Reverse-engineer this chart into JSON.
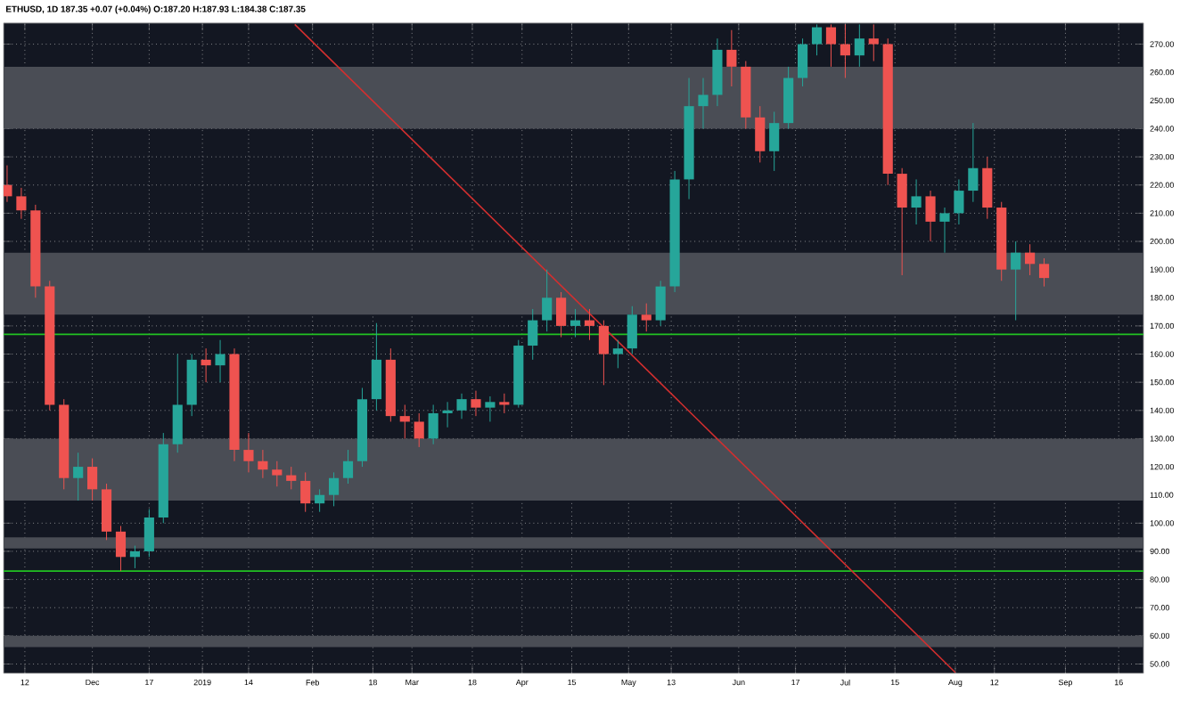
{
  "chart_data": {
    "type": "candlestick",
    "title": "ETHUSD, 1D 187.35 +0.07 (+0.04%) O:187.20 H:187.93 L:184.38 C:187.35",
    "x": [
      "2018-11-07",
      "2018-11-11",
      "2018-11-15",
      "2018-11-19",
      "2018-11-23",
      "2018-11-27",
      "2018-12-01",
      "2018-12-05",
      "2018-12-09",
      "2018-12-13",
      "2018-12-17",
      "2018-12-21",
      "2018-12-25",
      "2018-12-29",
      "2019-01-02",
      "2019-01-06",
      "2019-01-10",
      "2019-01-14",
      "2019-01-18",
      "2019-01-22",
      "2019-01-26",
      "2019-01-30",
      "2019-02-03",
      "2019-02-07",
      "2019-02-11",
      "2019-02-15",
      "2019-02-19",
      "2019-02-23",
      "2019-02-27",
      "2019-03-03",
      "2019-03-07",
      "2019-03-11",
      "2019-03-15",
      "2019-03-19",
      "2019-03-23",
      "2019-03-27",
      "2019-03-31",
      "2019-04-04",
      "2019-04-08",
      "2019-04-12",
      "2019-04-16",
      "2019-04-20",
      "2019-04-24",
      "2019-04-28",
      "2019-05-02",
      "2019-05-06",
      "2019-05-10",
      "2019-05-14",
      "2019-05-18",
      "2019-05-22",
      "2019-05-26",
      "2019-05-30",
      "2019-06-03",
      "2019-06-07",
      "2019-06-11",
      "2019-06-15",
      "2019-06-19",
      "2019-06-23",
      "2019-06-27",
      "2019-07-01",
      "2019-07-05",
      "2019-07-09",
      "2019-07-13",
      "2019-07-17",
      "2019-07-21",
      "2019-07-25",
      "2019-07-29",
      "2019-08-02",
      "2019-08-06",
      "2019-08-10",
      "2019-08-14",
      "2019-08-18",
      "2019-08-22",
      "2019-08-26"
    ],
    "ohlc": [
      [
        220,
        227,
        214,
        216
      ],
      [
        216,
        219,
        208,
        211
      ],
      [
        211,
        213,
        180,
        184
      ],
      [
        184,
        186,
        140,
        142
      ],
      [
        142,
        144,
        112,
        116
      ],
      [
        116,
        125,
        108,
        120
      ],
      [
        120,
        123,
        108,
        112
      ],
      [
        112,
        114,
        94,
        97
      ],
      [
        97,
        99,
        83,
        88
      ],
      [
        88,
        92,
        84,
        90
      ],
      [
        90,
        105,
        88,
        102
      ],
      [
        102,
        132,
        100,
        128
      ],
      [
        128,
        160,
        125,
        142
      ],
      [
        142,
        160,
        138,
        158
      ],
      [
        158,
        162,
        150,
        156
      ],
      [
        156,
        165,
        150,
        160
      ],
      [
        160,
        162,
        122,
        126
      ],
      [
        126,
        132,
        118,
        122
      ],
      [
        122,
        126,
        116,
        119
      ],
      [
        119,
        122,
        113,
        117
      ],
      [
        117,
        120,
        112,
        115
      ],
      [
        115,
        118,
        104,
        107
      ],
      [
        107,
        112,
        104,
        110
      ],
      [
        110,
        118,
        106,
        116
      ],
      [
        116,
        126,
        114,
        122
      ],
      [
        122,
        148,
        120,
        144
      ],
      [
        144,
        171,
        140,
        158
      ],
      [
        158,
        162,
        136,
        138
      ],
      [
        138,
        142,
        130,
        136
      ],
      [
        136,
        139,
        127,
        130
      ],
      [
        130,
        142,
        128,
        139
      ],
      [
        139,
        143,
        134,
        140
      ],
      [
        140,
        146,
        137,
        144
      ],
      [
        144,
        147,
        138,
        141
      ],
      [
        141,
        145,
        136,
        143
      ],
      [
        143,
        146,
        139,
        142
      ],
      [
        142,
        165,
        141,
        163
      ],
      [
        163,
        176,
        158,
        172
      ],
      [
        172,
        190,
        168,
        180
      ],
      [
        180,
        182,
        166,
        170
      ],
      [
        170,
        176,
        166,
        172
      ],
      [
        172,
        176,
        165,
        170
      ],
      [
        170,
        172,
        149,
        160
      ],
      [
        160,
        165,
        155,
        162
      ],
      [
        162,
        177,
        160,
        174
      ],
      [
        174,
        178,
        168,
        172
      ],
      [
        172,
        186,
        170,
        184
      ],
      [
        184,
        225,
        182,
        222
      ],
      [
        222,
        258,
        215,
        248
      ],
      [
        248,
        258,
        240,
        252
      ],
      [
        252,
        272,
        248,
        268
      ],
      [
        268,
        275,
        255,
        262
      ],
      [
        262,
        264,
        240,
        244
      ],
      [
        244,
        248,
        228,
        232
      ],
      [
        232,
        246,
        225,
        242
      ],
      [
        242,
        262,
        240,
        258
      ],
      [
        258,
        272,
        255,
        270
      ],
      [
        270,
        277,
        266,
        276
      ],
      [
        276,
        277,
        262,
        270
      ],
      [
        270,
        277,
        258,
        266
      ],
      [
        266,
        277,
        262,
        272
      ],
      [
        272,
        277,
        264,
        270
      ],
      [
        270,
        272,
        220,
        224
      ],
      [
        224,
        226,
        188,
        212
      ],
      [
        212,
        222,
        206,
        216
      ],
      [
        216,
        218,
        200,
        207
      ],
      [
        207,
        212,
        196,
        210
      ],
      [
        210,
        222,
        206,
        218
      ],
      [
        218,
        242,
        214,
        226
      ],
      [
        226,
        230,
        208,
        212
      ],
      [
        212,
        214,
        186,
        190
      ],
      [
        190,
        200,
        172,
        196
      ],
      [
        196,
        199,
        188,
        192
      ],
      [
        192,
        194,
        184,
        187
      ]
    ],
    "series": [
      {
        "type": "line",
        "color": "#d32f2f",
        "x": [
          "2019-01-27",
          "2019-08-01"
        ],
        "values": [
          277,
          47
        ]
      }
    ],
    "xlim": [
      "2018-11-06",
      "2019-09-23"
    ],
    "ylim": [
      46.7,
      277.5
    ],
    "xticks": [
      {
        "value": "2018-11-12",
        "label": "12"
      },
      {
        "value": "2018-12-01",
        "label": "Dec"
      },
      {
        "value": "2018-12-17",
        "label": "17"
      },
      {
        "value": "2019-01-01",
        "label": "2019"
      },
      {
        "value": "2019-01-14",
        "label": "14"
      },
      {
        "value": "2019-02-01",
        "label": "Feb"
      },
      {
        "value": "2019-02-18",
        "label": "18"
      },
      {
        "value": "2019-03-01",
        "label": "Mar"
      },
      {
        "value": "2019-03-18",
        "label": "18"
      },
      {
        "value": "2019-04-01",
        "label": "Apr"
      },
      {
        "value": "2019-04-15",
        "label": "15"
      },
      {
        "value": "2019-05-01",
        "label": "May"
      },
      {
        "value": "2019-05-13",
        "label": "13"
      },
      {
        "value": "2019-06-01",
        "label": "Jun"
      },
      {
        "value": "2019-06-17",
        "label": "17"
      },
      {
        "value": "2019-07-01",
        "label": "Jul"
      },
      {
        "value": "2019-07-15",
        "label": "15"
      },
      {
        "value": "2019-08-01",
        "label": "Aug"
      },
      {
        "value": "2019-08-12",
        "label": "12"
      },
      {
        "value": "2019-09-01",
        "label": "Sep"
      },
      {
        "value": "2019-09-16",
        "label": "16"
      }
    ],
    "yticks": [
      {
        "value": 50,
        "label": "50.00"
      },
      {
        "value": 60,
        "label": "60.00"
      },
      {
        "value": 70,
        "label": "70.00"
      },
      {
        "value": 80,
        "label": "80.00"
      },
      {
        "value": 90,
        "label": "90.00"
      },
      {
        "value": 100,
        "label": "100.00"
      },
      {
        "value": 110,
        "label": "110.00"
      },
      {
        "value": 120,
        "label": "120.00"
      },
      {
        "value": 130,
        "label": "130.00"
      },
      {
        "value": 140,
        "label": "140.00"
      },
      {
        "value": 150,
        "label": "150.00"
      },
      {
        "value": 160,
        "label": "160.00"
      },
      {
        "value": 170,
        "label": "170.00"
      },
      {
        "value": 180,
        "label": "180.00"
      },
      {
        "value": 190,
        "label": "190.00"
      },
      {
        "value": 200,
        "label": "200.00"
      },
      {
        "value": 210,
        "label": "210.00"
      },
      {
        "value": 220,
        "label": "220.00"
      },
      {
        "value": 230,
        "label": "230.00"
      },
      {
        "value": 240,
        "label": "240.00"
      },
      {
        "value": 250,
        "label": "250.00"
      },
      {
        "value": 260,
        "label": "260.00"
      },
      {
        "value": 270,
        "label": "270.00"
      }
    ],
    "bands": [
      {
        "axis": "y",
        "from": 240,
        "to": 262,
        "color": "#4a4d55"
      },
      {
        "axis": "y",
        "from": 174,
        "to": 196,
        "color": "#4a4d55"
      },
      {
        "axis": "y",
        "from": 108,
        "to": 130,
        "color": "#4a4d55"
      },
      {
        "axis": "y",
        "from": 91,
        "to": 95,
        "color": "#4a4d55"
      },
      {
        "axis": "y",
        "from": 56,
        "to": 60,
        "color": "#4a4d55"
      }
    ],
    "ref_lines": [
      {
        "axis": "y",
        "value": 167,
        "color": "#22c322"
      },
      {
        "axis": "y",
        "value": 83,
        "color": "#22c322"
      }
    ],
    "grid": true
  }
}
